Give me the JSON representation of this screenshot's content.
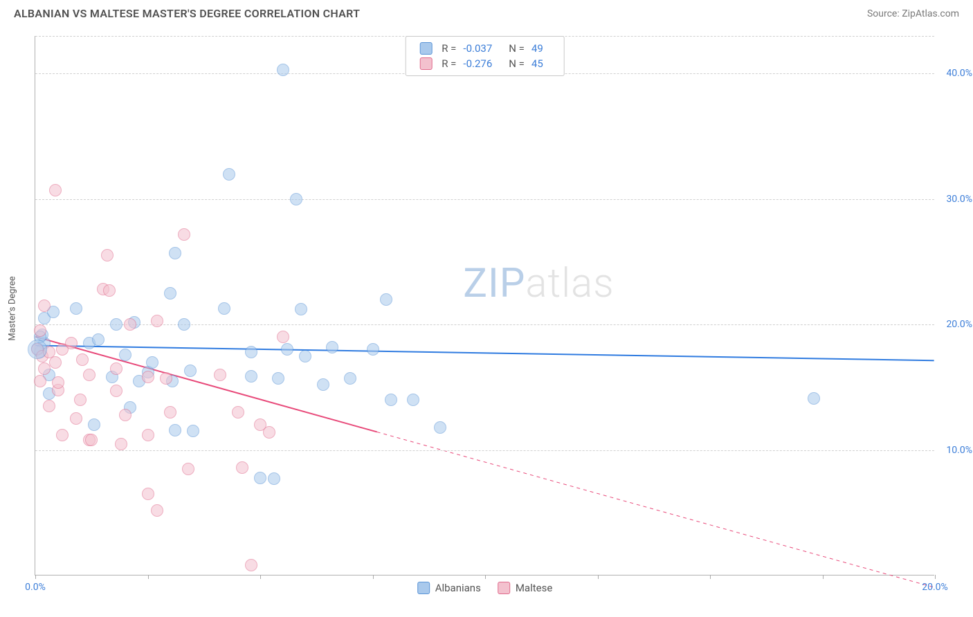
{
  "header": {
    "title": "ALBANIAN VS MALTESE MASTER'S DEGREE CORRELATION CHART",
    "source": "Source: ZipAtlas.com"
  },
  "chart": {
    "type": "scatter",
    "y_axis_label": "Master's Degree",
    "xlim": [
      0,
      20
    ],
    "ylim": [
      0,
      43
    ],
    "x_ticks": [
      0,
      2.5,
      5,
      7.5,
      10,
      12.5,
      15,
      17.5,
      20
    ],
    "x_tick_labels": {
      "0": "0.0%",
      "20": "20.0%"
    },
    "y_ticks": [
      10,
      20,
      30,
      40
    ],
    "y_tick_labels": {
      "10": "10.0%",
      "20": "20.0%",
      "30": "30.0%",
      "40": "40.0%"
    },
    "background_color": "#ffffff",
    "grid_color": "#d0d0d0",
    "point_radius": 9,
    "point_opacity": 0.55,
    "watermark": "ZIPatlas",
    "series": [
      {
        "name": "Albanians",
        "color_fill": "#a9c9ec",
        "color_stroke": "#5a94d6",
        "r_value": "-0.037",
        "n_value": "49",
        "trend": {
          "y_at_xmin": 18.3,
          "y_at_xmax": 17.1,
          "solid_until_x": 20,
          "color": "#2f7be0",
          "width": 2
        },
        "points": [
          [
            0.1,
            17.8
          ],
          [
            0.2,
            18.5
          ],
          [
            0.15,
            19.2
          ],
          [
            0.3,
            16.0
          ],
          [
            0.3,
            14.5
          ],
          [
            0.1,
            19.0
          ],
          [
            0.2,
            20.5
          ],
          [
            0.4,
            21.0
          ],
          [
            0.9,
            21.3
          ],
          [
            1.2,
            18.5
          ],
          [
            1.3,
            12.0
          ],
          [
            1.4,
            18.8
          ],
          [
            1.7,
            15.8
          ],
          [
            1.8,
            20.0
          ],
          [
            2.0,
            17.6
          ],
          [
            2.1,
            13.4
          ],
          [
            2.2,
            20.2
          ],
          [
            2.3,
            15.5
          ],
          [
            2.5,
            16.2
          ],
          [
            2.6,
            17.0
          ],
          [
            3.0,
            22.5
          ],
          [
            3.1,
            25.7
          ],
          [
            3.1,
            11.6
          ],
          [
            3.05,
            15.5
          ],
          [
            3.3,
            20.0
          ],
          [
            3.45,
            16.3
          ],
          [
            3.5,
            11.5
          ],
          [
            4.2,
            21.3
          ],
          [
            4.3,
            32.0
          ],
          [
            4.8,
            15.9
          ],
          [
            4.8,
            17.8
          ],
          [
            5.0,
            7.8
          ],
          [
            5.3,
            7.7
          ],
          [
            5.4,
            15.7
          ],
          [
            5.5,
            40.3
          ],
          [
            5.6,
            18.0
          ],
          [
            5.8,
            30.0
          ],
          [
            5.9,
            21.2
          ],
          [
            6.0,
            17.5
          ],
          [
            6.4,
            15.2
          ],
          [
            6.6,
            18.2
          ],
          [
            7.0,
            15.7
          ],
          [
            7.5,
            18.0
          ],
          [
            7.8,
            22.0
          ],
          [
            7.9,
            14.0
          ],
          [
            8.4,
            14.0
          ],
          [
            9.0,
            11.8
          ],
          [
            17.3,
            14.1
          ],
          [
            0.05,
            18.1
          ]
        ]
      },
      {
        "name": "Maltese",
        "color_fill": "#f3c1ce",
        "color_stroke": "#e06a8c",
        "r_value": "-0.276",
        "n_value": "45",
        "trend": {
          "y_at_xmin": 19.0,
          "y_at_xmax": -1.0,
          "solid_until_x": 7.6,
          "color": "#e84a7a",
          "width": 2
        },
        "points": [
          [
            0.05,
            18.0
          ],
          [
            0.1,
            19.5
          ],
          [
            0.15,
            17.5
          ],
          [
            0.2,
            16.5
          ],
          [
            0.2,
            21.5
          ],
          [
            0.1,
            15.5
          ],
          [
            0.3,
            13.5
          ],
          [
            0.3,
            17.8
          ],
          [
            0.45,
            30.7
          ],
          [
            0.45,
            17.0
          ],
          [
            0.5,
            14.8
          ],
          [
            0.6,
            11.2
          ],
          [
            0.6,
            18.0
          ],
          [
            0.5,
            15.4
          ],
          [
            1.0,
            14.0
          ],
          [
            1.2,
            10.8
          ],
          [
            1.25,
            10.8
          ],
          [
            1.2,
            16.0
          ],
          [
            1.5,
            22.8
          ],
          [
            1.6,
            25.5
          ],
          [
            1.65,
            22.7
          ],
          [
            1.8,
            14.7
          ],
          [
            1.8,
            16.5
          ],
          [
            1.9,
            10.5
          ],
          [
            2.0,
            12.8
          ],
          [
            2.5,
            6.5
          ],
          [
            2.5,
            11.2
          ],
          [
            2.5,
            15.8
          ],
          [
            2.7,
            20.3
          ],
          [
            2.7,
            5.2
          ],
          [
            2.9,
            15.7
          ],
          [
            3.0,
            13.0
          ],
          [
            3.3,
            27.2
          ],
          [
            3.4,
            8.5
          ],
          [
            4.1,
            16.0
          ],
          [
            4.5,
            13.0
          ],
          [
            4.6,
            8.6
          ],
          [
            4.8,
            0.8
          ],
          [
            5.0,
            12.0
          ],
          [
            5.2,
            11.4
          ],
          [
            5.5,
            19.0
          ],
          [
            2.1,
            20.0
          ],
          [
            0.8,
            18.5
          ],
          [
            0.9,
            12.5
          ],
          [
            1.05,
            17.2
          ]
        ]
      }
    ],
    "legend_bottom": [
      {
        "label": "Albanians",
        "fill": "#a9c9ec",
        "stroke": "#5a94d6"
      },
      {
        "label": "Maltese",
        "fill": "#f3c1ce",
        "stroke": "#e06a8c"
      }
    ]
  }
}
